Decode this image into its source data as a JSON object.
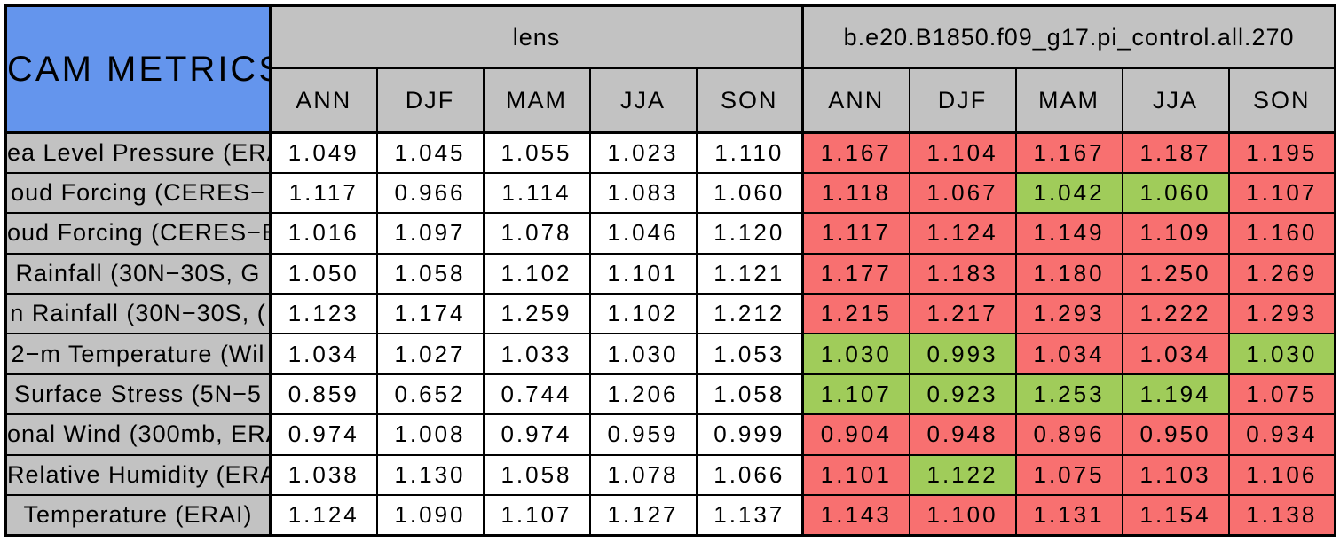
{
  "table": {
    "title": "CAM METRICS",
    "groups": [
      {
        "key": "lens",
        "label": "lens",
        "seasons": [
          "ANN",
          "DJF",
          "MAM",
          "JJA",
          "SON"
        ]
      },
      {
        "key": "control",
        "label": "b.e20.B1850.f09_g17.pi_control.all.270",
        "seasons": [
          "ANN",
          "DJF",
          "MAM",
          "JJA",
          "SON"
        ]
      }
    ],
    "colors": {
      "title_bg": "#6495ED",
      "header_bg": "#C2C2C2",
      "better_green": "#A0CC5A",
      "worse_red": "#F87070",
      "neutral_white": "#FFFFFF",
      "border": "#000000"
    },
    "rows": [
      {
        "label": "ea Level Pressure (ERA",
        "lens": [
          "1.049",
          "1.045",
          "1.055",
          "1.023",
          "1.110"
        ],
        "control": [
          "1.167",
          "1.104",
          "1.167",
          "1.187",
          "1.195"
        ],
        "control_status": [
          "worse",
          "worse",
          "worse",
          "worse",
          "worse"
        ]
      },
      {
        "label": "oud Forcing (CERES−",
        "lens": [
          "1.117",
          "0.966",
          "1.114",
          "1.083",
          "1.060"
        ],
        "control": [
          "1.118",
          "1.067",
          "1.042",
          "1.060",
          "1.107"
        ],
        "control_status": [
          "worse",
          "worse",
          "better",
          "better",
          "worse"
        ]
      },
      {
        "label": "oud Forcing (CERES−E",
        "lens": [
          "1.016",
          "1.097",
          "1.078",
          "1.046",
          "1.120"
        ],
        "control": [
          "1.117",
          "1.124",
          "1.149",
          "1.109",
          "1.160"
        ],
        "control_status": [
          "worse",
          "worse",
          "worse",
          "worse",
          "worse"
        ]
      },
      {
        "label": "Rainfall (30N−30S, G",
        "lens": [
          "1.050",
          "1.058",
          "1.102",
          "1.101",
          "1.121"
        ],
        "control": [
          "1.177",
          "1.183",
          "1.180",
          "1.250",
          "1.269"
        ],
        "control_status": [
          "worse",
          "worse",
          "worse",
          "worse",
          "worse"
        ]
      },
      {
        "label": "n Rainfall (30N−30S, (",
        "lens": [
          "1.123",
          "1.174",
          "1.259",
          "1.102",
          "1.212"
        ],
        "control": [
          "1.215",
          "1.217",
          "1.293",
          "1.222",
          "1.293"
        ],
        "control_status": [
          "worse",
          "worse",
          "worse",
          "worse",
          "worse"
        ]
      },
      {
        "label": "2−m Temperature (Wil",
        "lens": [
          "1.034",
          "1.027",
          "1.033",
          "1.030",
          "1.053"
        ],
        "control": [
          "1.030",
          "0.993",
          "1.034",
          "1.034",
          "1.030"
        ],
        "control_status": [
          "better",
          "better",
          "worse",
          "worse",
          "better"
        ]
      },
      {
        "label": "Surface Stress (5N−5",
        "lens": [
          "0.859",
          "0.652",
          "0.744",
          "1.206",
          "1.058"
        ],
        "control": [
          "1.107",
          "0.923",
          "1.253",
          "1.194",
          "1.075"
        ],
        "control_status": [
          "better",
          "better",
          "better",
          "better",
          "worse"
        ]
      },
      {
        "label": "onal Wind (300mb, ERA",
        "lens": [
          "0.974",
          "1.008",
          "0.974",
          "0.959",
          "0.999"
        ],
        "control": [
          "0.904",
          "0.948",
          "0.896",
          "0.950",
          "0.934"
        ],
        "control_status": [
          "worse",
          "worse",
          "worse",
          "worse",
          "worse"
        ]
      },
      {
        "label": "Relative Humidity (ERAI",
        "lens": [
          "1.038",
          "1.130",
          "1.058",
          "1.078",
          "1.066"
        ],
        "control": [
          "1.101",
          "1.122",
          "1.075",
          "1.103",
          "1.106"
        ],
        "control_status": [
          "worse",
          "better",
          "worse",
          "worse",
          "worse"
        ]
      },
      {
        "label": "Temperature (ERAI)",
        "lens": [
          "1.124",
          "1.090",
          "1.107",
          "1.127",
          "1.137"
        ],
        "control": [
          "1.143",
          "1.100",
          "1.131",
          "1.154",
          "1.138"
        ],
        "control_status": [
          "worse",
          "worse",
          "worse",
          "worse",
          "worse"
        ]
      }
    ]
  }
}
